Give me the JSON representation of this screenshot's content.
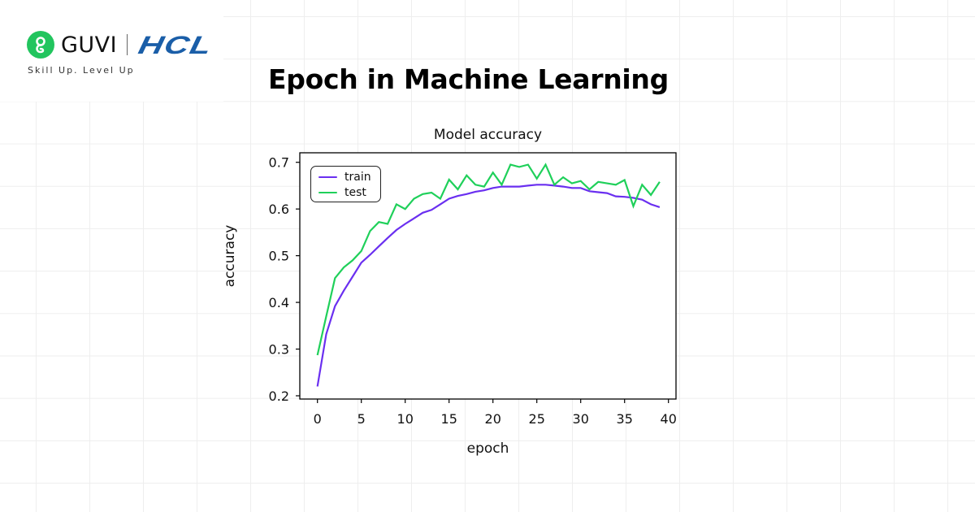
{
  "header": {
    "brand_name": "GUVI",
    "partner_name": "HCL",
    "tagline": "Skill Up. Level Up",
    "logo_icon": "guvi-g-icon",
    "brand_color": "#22c55e",
    "partner_color": "#1a5ea8"
  },
  "page_title": "Epoch in Machine Learning",
  "chart_data": {
    "type": "line",
    "title": "Model accuracy",
    "xlabel": "epoch",
    "ylabel": "accuracy",
    "xlim": [
      -2,
      41
    ],
    "ylim": [
      0.195,
      0.716
    ],
    "xticks": [
      0,
      5,
      10,
      15,
      20,
      25,
      30,
      35,
      40
    ],
    "yticks": [
      0.2,
      0.3,
      0.4,
      0.5,
      0.6,
      0.7
    ],
    "xtick_labels": [
      "0",
      "5",
      "10",
      "15",
      "20",
      "25",
      "30",
      "35",
      "40"
    ],
    "ytick_labels": [
      "0.2",
      "0.3",
      "0.4",
      "0.5",
      "0.6",
      "0.7"
    ],
    "grid": false,
    "legend_position": "upper left",
    "x": [
      0,
      1,
      2,
      3,
      4,
      5,
      6,
      7,
      8,
      9,
      10,
      11,
      12,
      13,
      14,
      15,
      16,
      17,
      18,
      19,
      20,
      21,
      22,
      23,
      24,
      25,
      26,
      27,
      28,
      29,
      30,
      31,
      32,
      33,
      34,
      35,
      36,
      37,
      38,
      39
    ],
    "series": [
      {
        "name": "train",
        "color": "#6a2ff0",
        "values": [
          0.22,
          0.332,
          0.392,
          0.425,
          0.455,
          0.485,
          0.502,
          0.52,
          0.538,
          0.555,
          0.568,
          0.58,
          0.592,
          0.598,
          0.61,
          0.622,
          0.628,
          0.632,
          0.637,
          0.64,
          0.645,
          0.648,
          0.648,
          0.648,
          0.65,
          0.652,
          0.652,
          0.65,
          0.648,
          0.645,
          0.645,
          0.638,
          0.636,
          0.634,
          0.627,
          0.626,
          0.624,
          0.62,
          0.61,
          0.604
        ]
      },
      {
        "name": "test",
        "color": "#1fd05a",
        "values": [
          0.287,
          0.37,
          0.452,
          0.475,
          0.49,
          0.51,
          0.553,
          0.572,
          0.568,
          0.61,
          0.6,
          0.622,
          0.632,
          0.635,
          0.622,
          0.663,
          0.642,
          0.672,
          0.652,
          0.648,
          0.678,
          0.652,
          0.695,
          0.69,
          0.695,
          0.665,
          0.695,
          0.652,
          0.668,
          0.655,
          0.66,
          0.642,
          0.658,
          0.655,
          0.652,
          0.662,
          0.606,
          0.652,
          0.63,
          0.658
        ]
      }
    ]
  }
}
